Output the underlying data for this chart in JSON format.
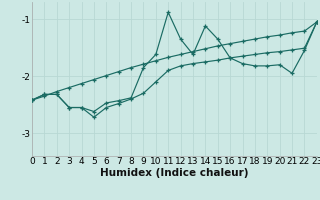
{
  "background_color": "#cce8e4",
  "line_color": "#1a6b63",
  "grid_color": "#b8d8d4",
  "xlabel": "Humidex (Indice chaleur)",
  "xlim": [
    0,
    23
  ],
  "ylim": [
    -3.4,
    -0.7
  ],
  "yticks": [
    -3,
    -2,
    -1
  ],
  "xticks": [
    0,
    1,
    2,
    3,
    4,
    5,
    6,
    7,
    8,
    9,
    10,
    11,
    12,
    13,
    14,
    15,
    16,
    17,
    18,
    19,
    20,
    21,
    22,
    23
  ],
  "y_jagged": [
    -2.42,
    -2.32,
    -2.32,
    -2.55,
    -2.55,
    -2.62,
    -2.47,
    -2.43,
    -2.38,
    -1.85,
    -1.62,
    -0.88,
    -1.35,
    -1.62,
    -1.12,
    -1.35,
    -1.68,
    -1.78,
    -1.82,
    -1.82,
    -1.8,
    -1.95,
    -1.55,
    -1.05
  ],
  "y_straight": [
    -2.42,
    -2.35,
    -2.27,
    -2.2,
    -2.13,
    -2.06,
    -1.99,
    -1.92,
    -1.85,
    -1.79,
    -1.73,
    -1.67,
    -1.62,
    -1.57,
    -1.52,
    -1.47,
    -1.43,
    -1.39,
    -1.35,
    -1.31,
    -1.28,
    -1.24,
    -1.21,
    -1.05
  ],
  "y_lower": [
    -2.42,
    -2.32,
    -2.32,
    -2.55,
    -2.55,
    -2.72,
    -2.55,
    -2.48,
    -2.4,
    -2.3,
    -2.1,
    -1.9,
    -1.82,
    -1.78,
    -1.75,
    -1.72,
    -1.68,
    -1.65,
    -1.62,
    -1.59,
    -1.57,
    -1.54,
    -1.51,
    -1.05
  ]
}
